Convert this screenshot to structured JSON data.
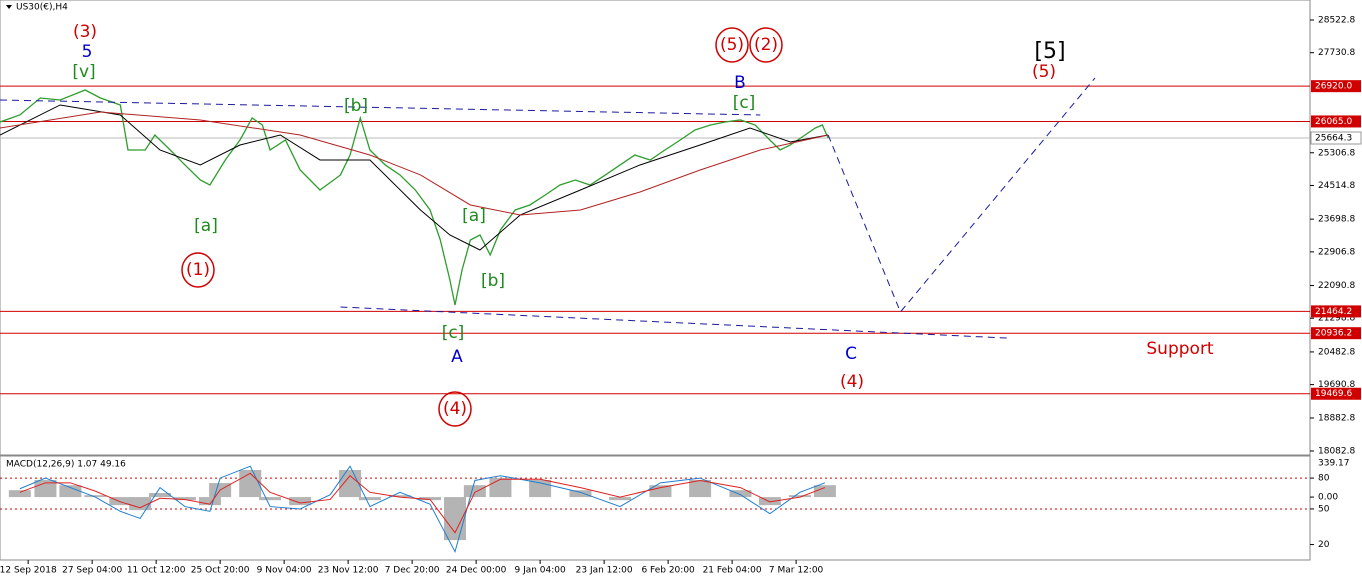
{
  "chart_data": {
    "type": "line",
    "symbol": "US30(€),H4",
    "ylim": [
      17986,
      29007
    ],
    "yticks": [
      28522.8,
      27730.8,
      25306.8,
      24514.8,
      23698.8,
      22906.8,
      22090.8,
      21298.8,
      20482.8,
      19690.8,
      18882.8,
      18082.8
    ],
    "levels": [
      {
        "value": 26920,
        "label": "26920.0"
      },
      {
        "value": 26065,
        "label": "26065.0"
      },
      {
        "value": 21464.2,
        "label": "21464.2"
      },
      {
        "value": 20936.2,
        "label": "20936.2"
      },
      {
        "value": 19469.6,
        "label": "19469.6"
      }
    ],
    "level_color": "#d00000",
    "current_price": 25664.3,
    "xlim": [
      -0.44,
      20.03
    ],
    "xticks": [
      {
        "value": 0,
        "label": "12 Sep 2018"
      },
      {
        "value": 1,
        "label": "27 Sep 04:00"
      },
      {
        "value": 2,
        "label": "11 Oct 12:00"
      },
      {
        "value": 3,
        "label": "25 Oct 20:00"
      },
      {
        "value": 4,
        "label": "9 Nov 04:00"
      },
      {
        "value": 5,
        "label": "23 Nov 12:00"
      },
      {
        "value": 6,
        "label": "7 Dec 20:00"
      },
      {
        "value": 7,
        "label": "24 Dec 00:00"
      },
      {
        "value": 8,
        "label": "9 Jan 04:00"
      },
      {
        "value": 9,
        "label": "23 Jan 12:00"
      },
      {
        "value": 10,
        "label": "6 Feb 20:00"
      },
      {
        "value": 11,
        "label": "21 Feb 04:00"
      },
      {
        "value": 12,
        "label": "7 Mar 12:00"
      }
    ],
    "series": [
      {
        "color": "#2e9e2e",
        "x": [
          -0.44,
          -0.13,
          0.19,
          0.5,
          0.89,
          1.13,
          1.44,
          1.56,
          1.83,
          1.98,
          2.22,
          2.45,
          2.69,
          2.84,
          3.08,
          3.31,
          3.5,
          3.66,
          3.78,
          4.02,
          4.25,
          4.56,
          4.88,
          5.03,
          5.19,
          5.34,
          5.58,
          5.81,
          6.05,
          6.28,
          6.44,
          6.59,
          6.67,
          6.78,
          6.91,
          7.06,
          7.22,
          7.38,
          7.61,
          7.84,
          8.08,
          8.31,
          8.55,
          8.78,
          9.02,
          9.25,
          9.48,
          9.72,
          9.95,
          10.19,
          10.42,
          10.66,
          10.89,
          11.13,
          11.36,
          11.59,
          11.75,
          11.91,
          12.14,
          12.3,
          12.41,
          12.5
        ],
        "values": [
          26052,
          26222,
          26633,
          26585,
          26827,
          26633,
          26464,
          25374,
          25374,
          25737,
          25374,
          25011,
          24647,
          24526,
          25132,
          25616,
          26149,
          25979,
          25374,
          25616,
          24890,
          24405,
          24769,
          25253,
          26149,
          25374,
          25011,
          24769,
          24405,
          23921,
          23194,
          22225,
          21620,
          22467,
          23194,
          23315,
          22831,
          23436,
          23921,
          24042,
          24284,
          24526,
          24647,
          24526,
          24769,
          25011,
          25253,
          25132,
          25374,
          25616,
          25858,
          25979,
          26052,
          26101,
          25979,
          25616,
          25374,
          25495,
          25737,
          25907,
          25979,
          25665
        ]
      },
      {
        "color": "#000000",
        "x": [
          -0.44,
          0.5,
          1.44,
          2.06,
          2.69,
          3.31,
          3.94,
          4.56,
          5.34,
          6.13,
          6.59,
          7.06,
          7.69,
          8.63,
          9.56,
          10.5,
          11.28,
          11.91,
          12.5
        ],
        "values": [
          25737,
          26464,
          26222,
          25374,
          25011,
          25495,
          25737,
          25132,
          25132,
          23921,
          23315,
          22952,
          23800,
          24405,
          25011,
          25495,
          25907,
          25568,
          25737
        ]
      },
      {
        "color": "#b22222",
        "x": [
          -0.44,
          1.13,
          2.69,
          4.25,
          5.34,
          6.13,
          6.91,
          7.69,
          8.63,
          9.56,
          10.5,
          11.44,
          12.5
        ],
        "values": [
          25907,
          26294,
          26101,
          25737,
          25253,
          24769,
          24042,
          23800,
          23921,
          24357,
          24890,
          25374,
          25737
        ]
      }
    ],
    "trendlines": [
      {
        "color": "#1a1aa0",
        "x": [
          -0.44,
          11.44
        ],
        "values": [
          26585,
          26222
        ]
      },
      {
        "color": "#1a1aa0",
        "x": [
          4.88,
          15.34
        ],
        "values": [
          21571,
          20816
        ]
      },
      {
        "color": "#1a1aa0",
        "x": [
          12.5,
          13.63,
          16.67
        ],
        "values": [
          25737,
          21450,
          27118
        ]
      }
    ],
    "annotations": [
      {
        "text": "(3)",
        "color": "#d00000"
      },
      {
        "text": "5",
        "color": "#0000cc"
      },
      {
        "text": "[v]",
        "color": "#1e8a1e"
      },
      {
        "text": "[a]",
        "color": "#1e8a1e"
      },
      {
        "text": "(1)",
        "color": "#d00000"
      },
      {
        "text": "[b]",
        "color": "#1e8a1e"
      },
      {
        "text": "[a]",
        "color": "#1e8a1e"
      },
      {
        "text": "[b]",
        "color": "#1e8a1e"
      },
      {
        "text": "[c]",
        "color": "#1e8a1e"
      },
      {
        "text": "A",
        "color": "#0000cc"
      },
      {
        "text": "(4)",
        "color": "#d00000"
      },
      {
        "text": "(5)",
        "color": "#d00000"
      },
      {
        "text": "(2)",
        "color": "#d00000"
      },
      {
        "text": "B",
        "color": "#0000cc"
      },
      {
        "text": "[c]",
        "color": "#1e8a1e"
      },
      {
        "text": "[5]",
        "color": "#000000"
      },
      {
        "text": "(5)",
        "color": "#d00000"
      },
      {
        "text": "C",
        "color": "#0000cc"
      },
      {
        "text": "(4)",
        "color": "#d00000"
      },
      {
        "text": "Support",
        "color": "#d00000"
      }
    ],
    "macd": {
      "label": "MACD(12,26,9) 1.07 49.16",
      "max_label": "339.17",
      "ylim": [
        -265,
        173
      ],
      "yticks": [
        80,
        {
          "value": 0,
          "label": "0.00"
        },
        {
          "value": -50,
          "label": "50"
        },
        {
          "value": -200,
          "label": "20"
        }
      ],
      "levels": [
        80,
        -50
      ],
      "x": [
        -0.13,
        0.27,
        0.66,
        1.05,
        1.44,
        1.75,
        2.06,
        2.45,
        2.84,
        3.0,
        3.47,
        3.78,
        4.25,
        4.72,
        5.03,
        5.34,
        5.81,
        6.28,
        6.67,
        6.98,
        7.38,
        8.0,
        8.63,
        9.25,
        9.88,
        10.5,
        11.13,
        11.59,
        12.06,
        12.45
      ],
      "histogram": [
        29,
        72,
        50,
        8,
        -34,
        -55,
        17,
        -13,
        -34,
        59,
        114,
        -13,
        -34,
        0,
        114,
        -13,
        8,
        -13,
        -181,
        50,
        80,
        72,
        29,
        -13,
        50,
        72,
        29,
        -34,
        8,
        50
      ],
      "histogram_color": "#b4b4b4",
      "signal": [
        20,
        60,
        60,
        25,
        -20,
        -45,
        -5,
        -10,
        -30,
        30,
        100,
        20,
        -25,
        -10,
        90,
        20,
        0,
        -10,
        -150,
        20,
        75,
        75,
        40,
        0,
        40,
        70,
        40,
        -20,
        0,
        40
      ],
      "signal_color": "#e02020",
      "main": [
        35,
        80,
        40,
        0,
        -60,
        -90,
        40,
        -40,
        -60,
        80,
        130,
        -40,
        -50,
        10,
        130,
        -40,
        20,
        -30,
        -230,
        70,
        90,
        60,
        20,
        -40,
        60,
        80,
        10,
        -70,
        20,
        60
      ],
      "main_color": "#1e7fd0"
    }
  }
}
